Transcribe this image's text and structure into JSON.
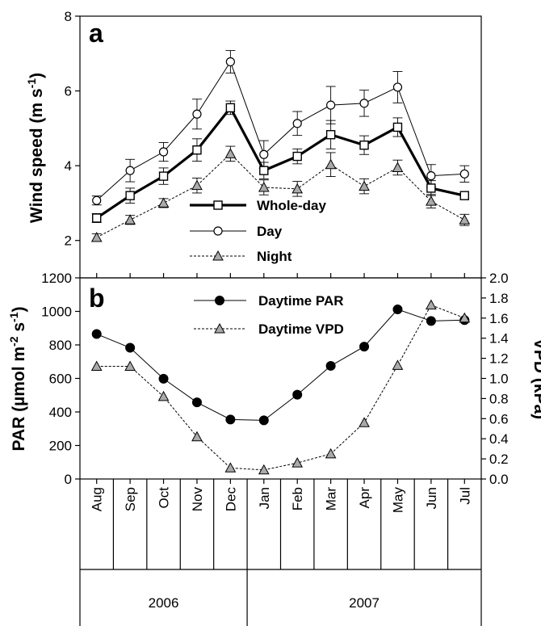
{
  "chart_data": [
    {
      "panel": "a",
      "type": "line",
      "categories": [
        "Aug",
        "Sep",
        "Oct",
        "Nov",
        "Dec",
        "Jan",
        "Feb",
        "Mar",
        "Apr",
        "May",
        "Jun",
        "Jul"
      ],
      "ylabel_main": "Wind speed (m s",
      "ylabel_sup": "-1",
      "ylabel_end": ")",
      "ylim": [
        1,
        8
      ],
      "yticks": [
        "2",
        "4",
        "6",
        "8"
      ],
      "series": [
        {
          "name": "Whole-day",
          "marker": "square",
          "line": "thick",
          "values": [
            2.6,
            3.2,
            3.72,
            4.42,
            5.55,
            3.87,
            4.25,
            4.83,
            4.55,
            5.03,
            3.4,
            3.2
          ],
          "errors": [
            0.12,
            0.2,
            0.22,
            0.3,
            0.18,
            0.22,
            0.2,
            0.38,
            0.25,
            0.25,
            0.2,
            0.0
          ]
        },
        {
          "name": "Day",
          "marker": "circle",
          "line": "thin",
          "values": [
            3.07,
            3.87,
            4.37,
            5.38,
            6.78,
            4.3,
            5.13,
            5.62,
            5.67,
            6.1,
            3.73,
            3.78
          ],
          "errors": [
            0.12,
            0.3,
            0.25,
            0.4,
            0.3,
            0.37,
            0.32,
            0.5,
            0.35,
            0.42,
            0.3,
            0.22
          ]
        },
        {
          "name": "Night",
          "marker": "triangle",
          "line": "dotted",
          "values": [
            2.08,
            2.55,
            3.0,
            3.47,
            4.32,
            3.42,
            3.38,
            4.03,
            3.45,
            3.95,
            3.05,
            2.55
          ],
          "errors": [
            0.1,
            0.12,
            0.12,
            0.2,
            0.2,
            0.2,
            0.2,
            0.32,
            0.2,
            0.2,
            0.18,
            0.15
          ]
        }
      ]
    },
    {
      "panel": "b",
      "type": "line",
      "categories": [
        "Aug",
        "Sep",
        "Oct",
        "Nov",
        "Dec",
        "Jan",
        "Feb",
        "Mar",
        "Apr",
        "May",
        "Jun",
        "Jul"
      ],
      "ylabel_left_main": "PAR (µmol m",
      "ylabel_left_sup1": "-2",
      "ylabel_left_mid": " s",
      "ylabel_left_sup2": "-1",
      "ylabel_left_end": ")",
      "ylabel_right": "VPD (kPa)",
      "ylim_left": [
        0,
        1200
      ],
      "ylim_right": [
        0,
        2.0
      ],
      "yticks_left": [
        "0",
        "200",
        "400",
        "600",
        "800",
        "1000",
        "1200"
      ],
      "yticks_right": [
        "0.0",
        "0.2",
        "0.4",
        "0.6",
        "0.8",
        "1.0",
        "1.2",
        "1.4",
        "1.6",
        "1.8",
        "2.0"
      ],
      "series": [
        {
          "name": "Daytime PAR",
          "axis": "left",
          "marker": "filled-circle",
          "line": "solid",
          "values": [
            865,
            783,
            598,
            457,
            355,
            350,
            503,
            675,
            790,
            1012,
            943,
            948
          ]
        },
        {
          "name": "Daytime VPD",
          "axis": "right",
          "marker": "triangle",
          "line": "dotted",
          "values": [
            1.12,
            1.12,
            0.82,
            0.42,
            0.11,
            0.09,
            0.16,
            0.25,
            0.56,
            1.13,
            1.73,
            1.6
          ]
        }
      ]
    }
  ],
  "x_axis": {
    "months": [
      "Aug",
      "Sep",
      "Oct",
      "Nov",
      "Dec",
      "Jan",
      "Feb",
      "Mar",
      "Apr",
      "May",
      "Jun",
      "Jul"
    ],
    "years": [
      {
        "label": "2006",
        "from": 0,
        "to": 4
      },
      {
        "label": "2007",
        "from": 5,
        "to": 11
      }
    ]
  }
}
